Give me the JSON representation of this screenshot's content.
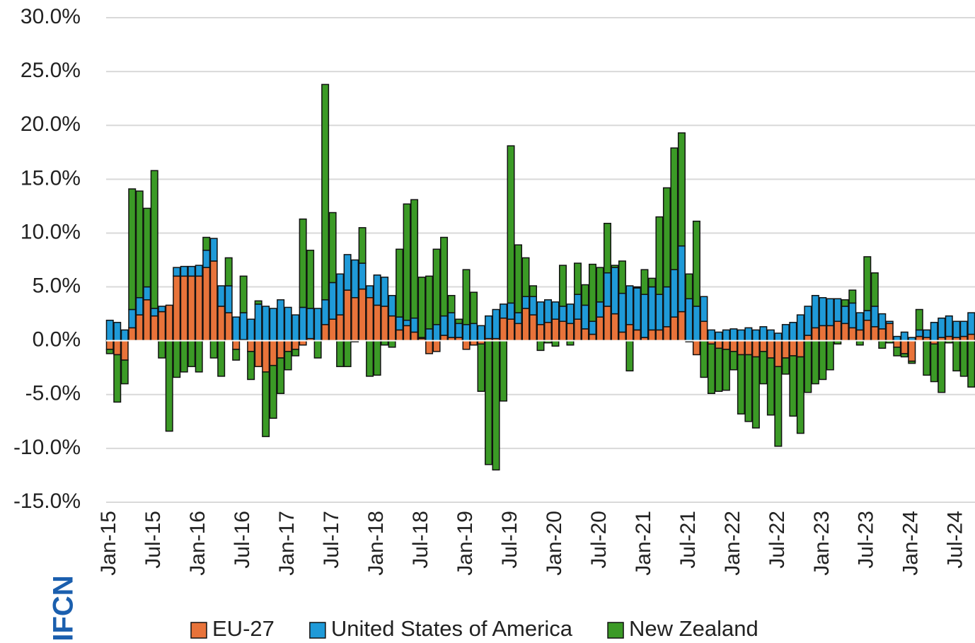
{
  "chart_data": {
    "type": "stacked_bar",
    "logo_text": "IFCN",
    "categories": [
      "Jan-15",
      null,
      null,
      null,
      null,
      null,
      "Jul-15",
      null,
      null,
      null,
      null,
      null,
      "Jan-16",
      null,
      null,
      null,
      null,
      null,
      "Jul-16",
      null,
      null,
      null,
      null,
      null,
      "Jan-17",
      null,
      null,
      null,
      null,
      null,
      "Jul-17",
      null,
      null,
      null,
      null,
      null,
      "Jan-18",
      null,
      null,
      null,
      null,
      null,
      "Jul-18",
      null,
      null,
      null,
      null,
      null,
      "Jan-19",
      null,
      null,
      null,
      null,
      null,
      "Jul-19",
      null,
      null,
      null,
      null,
      null,
      "Jan-20",
      null,
      null,
      null,
      null,
      null,
      "Jul-20",
      null,
      null,
      null,
      null,
      null,
      "Jan-21",
      null,
      null,
      null,
      null,
      null,
      "Jul-21",
      null,
      null,
      null,
      null,
      null,
      "Jan-22",
      null,
      null,
      null,
      null,
      null,
      "Jul-22",
      null,
      null,
      null,
      null,
      null,
      "Jan-23",
      null,
      null,
      null,
      null,
      null,
      "Jul-23",
      null,
      null,
      null,
      null,
      null,
      "Jan-24",
      null,
      null,
      null,
      null,
      null,
      "Jul-24",
      null,
      null
    ],
    "series": [
      {
        "name": "EU-27",
        "color": "#e8733a",
        "values": [
          -0.8,
          -1.3,
          -1.8,
          1.2,
          2.4,
          3.8,
          2.3,
          2.7,
          3.3,
          6.0,
          6.0,
          6.0,
          6.0,
          6.8,
          7.4,
          3.2,
          2.6,
          -0.8,
          0.1,
          -1.0,
          -2.4,
          -2.9,
          -2.3,
          -1.6,
          -1.0,
          -0.8,
          -0.4,
          0.2,
          0,
          1.5,
          2.0,
          2.4,
          4.7,
          4.0,
          4.8,
          4.0,
          3.3,
          3.2,
          2.3,
          1.0,
          1.4,
          0.8,
          0.2,
          -1.2,
          -1.0,
          0.5,
          0.3,
          0.3,
          -0.8,
          -0.4,
          -0.3,
          0.2,
          0.2,
          2.1,
          2.0,
          1.6,
          3.0,
          2.4,
          1.5,
          1.7,
          2.0,
          1.8,
          1.6,
          2.0,
          1.1,
          0.6,
          2.2,
          3.2,
          2.5,
          0.8,
          1.5,
          1.0,
          0.3,
          1.0,
          1.0,
          1.3,
          2.2,
          2.7,
          -0.1,
          -1.3,
          1.8,
          -0.3,
          -0.7,
          -0.8,
          -1.0,
          -1.3,
          -1.3,
          -1.5,
          -1.0,
          -1.6,
          -2.4,
          -1.6,
          -1.4,
          -1.5,
          0.5,
          1.2,
          1.4,
          1.4,
          1.8,
          1.6,
          1.2,
          1.0,
          1.9,
          1.3,
          1.1,
          1.6,
          -0.6,
          -1.2,
          -1.9,
          0.4,
          0.3,
          -0.3,
          0.3,
          0.4,
          0.3,
          0.4,
          0.6
        ]
      },
      {
        "name": "United States of America",
        "color": "#1f9ad8",
        "values": [
          1.9,
          1.7,
          1.0,
          1.7,
          1.6,
          1.2,
          0.7,
          0.5,
          0,
          0.8,
          0.9,
          0.9,
          1.0,
          1.6,
          2.1,
          1.9,
          2.5,
          2.2,
          2.5,
          2.0,
          3.4,
          3.2,
          3.0,
          3.8,
          3.1,
          2.4,
          3.1,
          2.8,
          3.0,
          2.3,
          3.4,
          3.8,
          3.3,
          3.5,
          2.4,
          1.1,
          2.8,
          2.7,
          1.9,
          1.2,
          0.5,
          1.3,
          0.1,
          1.1,
          1.5,
          1.8,
          2.3,
          1.3,
          1.5,
          1.6,
          1.4,
          2.1,
          2.7,
          1.3,
          1.5,
          1.0,
          1.1,
          1.7,
          2.1,
          2.1,
          1.6,
          1.4,
          1.8,
          2.3,
          2.2,
          1.2,
          1.4,
          3.1,
          4.3,
          3.6,
          3.6,
          3.9,
          4.0,
          4.0,
          3.3,
          3.7,
          4.4,
          6.1,
          3.9,
          3.2,
          2.3,
          1.0,
          0.8,
          1.0,
          1.1,
          1.0,
          1.2,
          1.0,
          1.3,
          1.0,
          0.7,
          1.5,
          1.7,
          2.4,
          2.7,
          3.0,
          2.6,
          2.5,
          2.1,
          1.6,
          2.3,
          1.6,
          0.9,
          1.9,
          1.4,
          0.2,
          0.4,
          0.8,
          0.3,
          0.6,
          0.7,
          1.7,
          1.8,
          1.9,
          1.5,
          1.4,
          2.0
        ]
      },
      {
        "name": "New Zealand",
        "color": "#3b9a26",
        "values": [
          -0.4,
          -4.4,
          -2.2,
          11.2,
          9.9,
          7.3,
          12.8,
          -1.6,
          -8.4,
          -3.4,
          -2.9,
          -2.4,
          -2.9,
          1.2,
          -1.6,
          -3.3,
          2.6,
          -1.0,
          3.4,
          -2.6,
          0.3,
          -6.0,
          -4.9,
          -3.3,
          -1.7,
          -0.6,
          8.2,
          5.4,
          -1.6,
          20.0,
          6.5,
          -2.4,
          -2.4,
          -0.1,
          3.3,
          -3.3,
          -3.2,
          -0.4,
          -0.6,
          6.3,
          10.8,
          11.0,
          5.6,
          4.9,
          7.0,
          7.3,
          1.6,
          0.4,
          5.1,
          2.9,
          -4.4,
          -11.5,
          -12.0,
          -5.6,
          14.6,
          6.3,
          3.6,
          1.0,
          -0.9,
          -0.2,
          -0.5,
          3.8,
          -0.4,
          2.9,
          1.9,
          5.3,
          3.2,
          4.6,
          0.2,
          3.0,
          -2.8,
          0.1,
          2.3,
          0.8,
          7.2,
          9.2,
          11.3,
          10.5,
          2.3,
          7.9,
          -3.4,
          -4.6,
          -4.0,
          -3.8,
          -1.7,
          -5.5,
          -6.2,
          -6.6,
          -3.0,
          -5.3,
          -7.4,
          -1.5,
          -5.6,
          -7.1,
          -4.8,
          -4.0,
          -3.6,
          -2.7,
          -0.3,
          0.6,
          1.2,
          -0.4,
          5.0,
          3.1,
          -0.7,
          -0.2,
          -0.8,
          -0.3,
          -0.2,
          1.9,
          -3.2,
          -3.5,
          -4.8,
          -0.2,
          -2.8,
          -3.3,
          -4.3
        ]
      }
    ],
    "ylim": [
      -15,
      30
    ],
    "yticks": [
      {
        "value": -15,
        "label": "-15.0%"
      },
      {
        "value": -10,
        "label": "-10.0%"
      },
      {
        "value": -5,
        "label": "-5.0%"
      },
      {
        "value": 0,
        "label": "0.0%"
      },
      {
        "value": 5,
        "label": "5.0%"
      },
      {
        "value": 10,
        "label": "10.0%"
      },
      {
        "value": 15,
        "label": "15.0%"
      },
      {
        "value": 20,
        "label": "20.0%"
      },
      {
        "value": 25,
        "label": "25.0%"
      },
      {
        "value": 30,
        "label": "30.0%"
      }
    ],
    "grid": true,
    "legend": "bottom"
  }
}
